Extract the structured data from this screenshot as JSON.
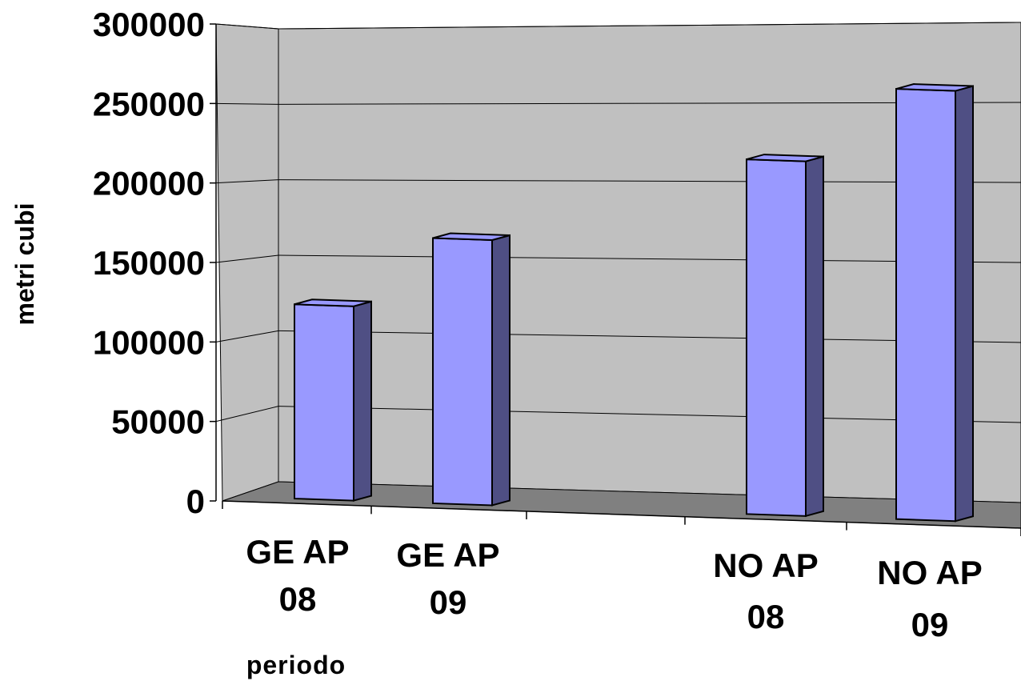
{
  "chart_data": {
    "type": "bar",
    "style": "3d",
    "categories": [
      [
        "GE AP",
        "08"
      ],
      [
        "GE AP",
        "09"
      ],
      [
        "NO AP",
        "08"
      ],
      [
        "NO AP",
        "09"
      ]
    ],
    "values": [
      126000,
      172000,
      230000,
      279000
    ],
    "xlabel": "periodo",
    "ylabel": "metri cubi",
    "ylim": [
      0,
      300000
    ],
    "yticks": [
      0,
      50000,
      100000,
      150000,
      200000,
      250000,
      300000
    ],
    "grid": true,
    "legend": "none",
    "colors": {
      "bar_front": "#9999ff",
      "bar_side": "#4f4f84",
      "bar_top": "#9999ff",
      "back_wall": "#c0c0c0",
      "side_wall": "#c0c0c0",
      "floor": "#808080",
      "gridline": "#000000"
    }
  }
}
